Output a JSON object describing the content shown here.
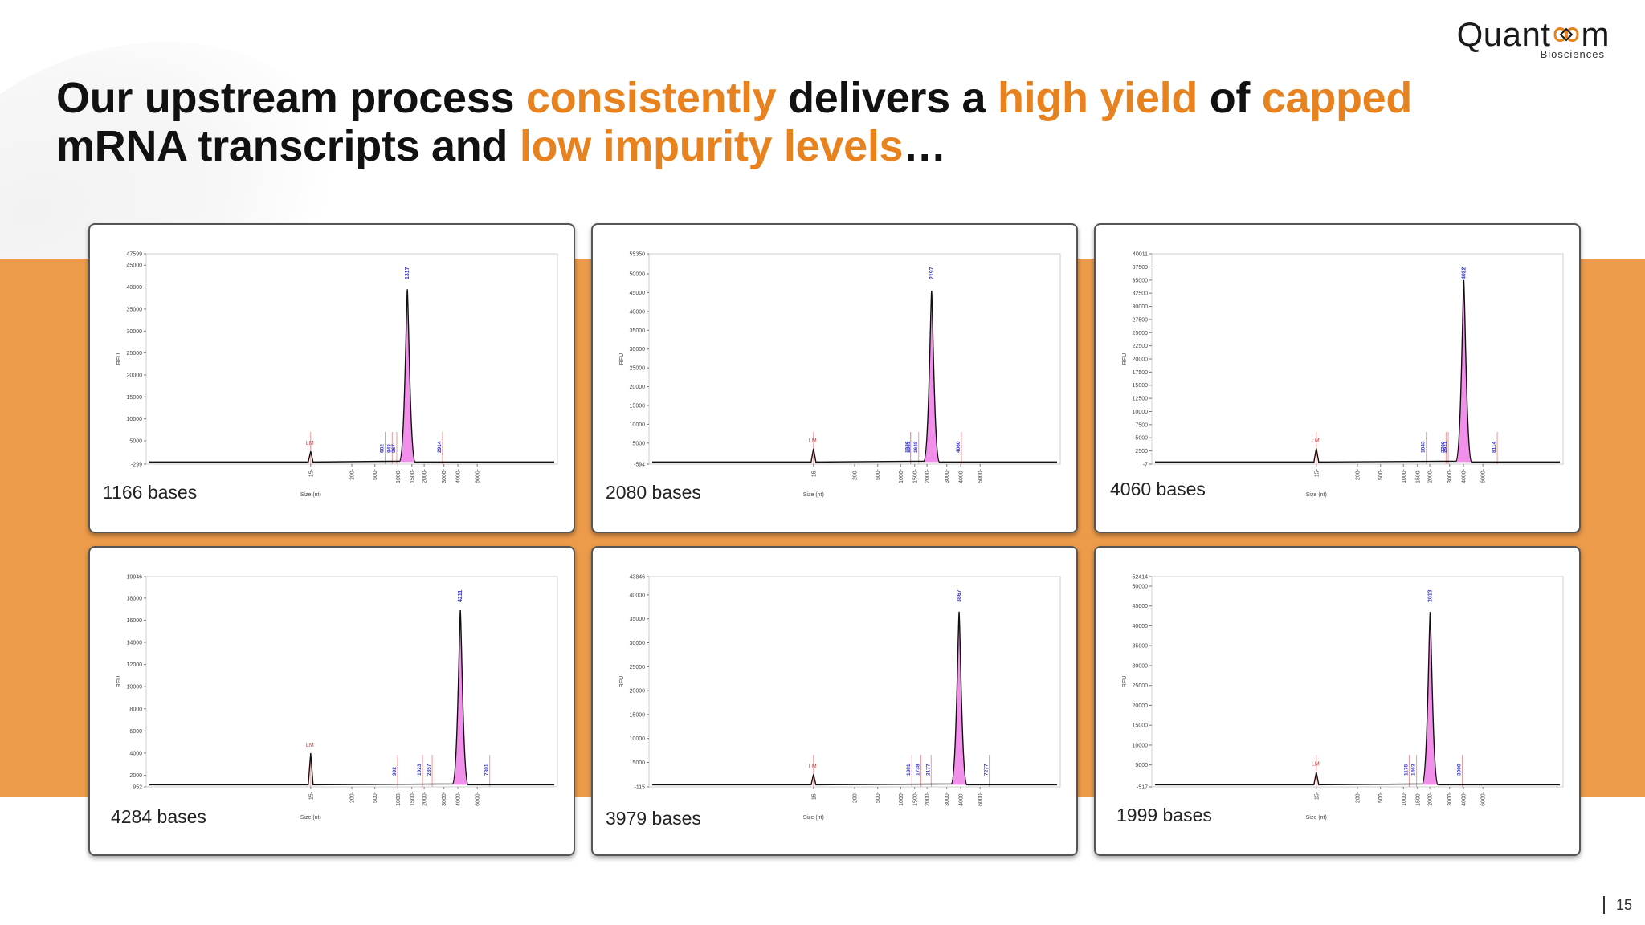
{
  "slide": {
    "title_parts": [
      {
        "text": "Our upstream process ",
        "hl": false
      },
      {
        "text": "consistently",
        "hl": true
      },
      {
        "text": " delivers a ",
        "hl": false
      },
      {
        "text": "high yield",
        "hl": true
      },
      {
        "text": " of ",
        "hl": false
      },
      {
        "text": "capped",
        "hl": true
      },
      {
        "text": "\n",
        "hl": false
      },
      {
        "text": "mRNA transcripts and ",
        "hl": false
      },
      {
        "text": "low impurity levels",
        "hl": true
      },
      {
        "text": "…",
        "hl": false
      }
    ],
    "page_number": "15",
    "colors": {
      "accent": "#E8821F",
      "band": "#EC9B4A",
      "fill": "#F07BE8",
      "marker_line": "#F08A8A",
      "peak_label": "#3A3AD0",
      "lm_label": "#D83030"
    }
  },
  "logo": {
    "name_pre": "Quant",
    "name_post": "m",
    "subtitle": "Biosciences"
  },
  "chart_data": [
    {
      "type": "line",
      "label": "1166 bases",
      "ylabel": "RFU",
      "xlabel": "Size (nt)",
      "ylim": [
        -299,
        47599
      ],
      "yticks": [
        "-299",
        "5000",
        "10000",
        "15000",
        "20000",
        "25000",
        "30000",
        "35000",
        "40000",
        "45000",
        "47599"
      ],
      "xticks": [
        "15",
        "200",
        "500",
        "1000",
        "1500",
        "2000",
        "3000",
        "4000",
        "6000"
      ],
      "lm": {
        "x": 15,
        "y": 2600,
        "label": "LM"
      },
      "peak": {
        "x": 1317,
        "y": 39500,
        "label": "1317"
      },
      "markers": [
        {
          "x": 682,
          "label": "682"
        },
        {
          "x": 843,
          "label": "843"
        },
        {
          "x": 967,
          "label": "967"
        },
        {
          "x": 2914,
          "label": "2914"
        }
      ]
    },
    {
      "type": "line",
      "label": "2080 bases",
      "ylabel": "RFU",
      "xlabel": "Size (nt)",
      "ylim": [
        -594,
        55350
      ],
      "yticks": [
        "-594",
        "5000",
        "10000",
        "15000",
        "20000",
        "25000",
        "30000",
        "35000",
        "40000",
        "45000",
        "50000",
        "55350"
      ],
      "xticks": [
        "15",
        "200",
        "500",
        "1000",
        "1500",
        "2000",
        "3000",
        "4000",
        "6000"
      ],
      "lm": {
        "x": 15,
        "y": 3500,
        "label": "LM"
      },
      "peak": {
        "x": 2197,
        "y": 45500,
        "label": "2197"
      },
      "markers": [
        {
          "x": 1326,
          "label": "1326"
        },
        {
          "x": 1381,
          "label": "1381"
        },
        {
          "x": 1648,
          "label": "1648"
        },
        {
          "x": 4060,
          "label": "4060"
        }
      ]
    },
    {
      "type": "line",
      "label": "4060 bases",
      "ylabel": "RFU",
      "xlabel": "Size (nt)",
      "ylim": [
        -7,
        40011
      ],
      "yticks": [
        "-7",
        "2500",
        "5000",
        "7500",
        "10000",
        "12500",
        "15000",
        "17500",
        "20000",
        "22500",
        "25000",
        "27500",
        "30000",
        "32500",
        "35000",
        "37500",
        "40011"
      ],
      "xticks": [
        "15",
        "200",
        "500",
        "1000",
        "1500",
        "2000",
        "3000",
        "4000",
        "6000"
      ],
      "lm": {
        "x": 15,
        "y": 3000,
        "label": "LM"
      },
      "peak": {
        "x": 4022,
        "y": 35000,
        "label": "4022"
      },
      "markers": [
        {
          "x": 1843,
          "label": "1843"
        },
        {
          "x": 2790,
          "label": "2790"
        },
        {
          "x": 2921,
          "label": "2921"
        },
        {
          "x": 8114,
          "label": "8114"
        }
      ]
    },
    {
      "type": "line",
      "label": "4284 bases",
      "ylabel": "RFU",
      "xlabel": "Size (nt)",
      "ylim": [
        952,
        19946
      ],
      "yticks": [
        "952",
        "2000",
        "4000",
        "6000",
        "8000",
        "10000",
        "12000",
        "14000",
        "16000",
        "18000",
        "19946"
      ],
      "xticks": [
        "15",
        "200",
        "500",
        "1000",
        "1500",
        "2000",
        "3000",
        "4000",
        "6000"
      ],
      "lm": {
        "x": 15,
        "y": 4000,
        "label": "LM"
      },
      "peak": {
        "x": 4211,
        "y": 16900,
        "label": "4211"
      },
      "markers": [
        {
          "x": 992,
          "label": "992"
        },
        {
          "x": 1923,
          "label": "1923"
        },
        {
          "x": 2357,
          "label": "2357"
        },
        {
          "x": 7801,
          "label": "7801"
        }
      ]
    },
    {
      "type": "line",
      "label": "3979 bases",
      "ylabel": "RFU",
      "xlabel": "Size (nt)",
      "ylim": [
        -115,
        43846
      ],
      "yticks": [
        "-115",
        "5000",
        "10000",
        "15000",
        "20000",
        "25000",
        "30000",
        "35000",
        "40000",
        "43846"
      ],
      "xticks": [
        "15",
        "200",
        "500",
        "1000",
        "1500",
        "2000",
        "3000",
        "4000",
        "6000"
      ],
      "lm": {
        "x": 15,
        "y": 2500,
        "label": "LM"
      },
      "peak": {
        "x": 3867,
        "y": 36500,
        "label": "3867"
      },
      "markers": [
        {
          "x": 1381,
          "label": "1381"
        },
        {
          "x": 1738,
          "label": "1738"
        },
        {
          "x": 2177,
          "label": "2177"
        },
        {
          "x": 7277,
          "label": "7277"
        }
      ]
    },
    {
      "type": "line",
      "label": "1999 bases",
      "ylabel": "RFU",
      "xlabel": "Size (nt)",
      "ylim": [
        -517,
        52414
      ],
      "yticks": [
        "-517",
        "5000",
        "10000",
        "15000",
        "20000",
        "25000",
        "30000",
        "35000",
        "40000",
        "45000",
        "50000",
        "52414"
      ],
      "xticks": [
        "15",
        "200",
        "500",
        "1000",
        "1500",
        "2000",
        "3000",
        "4000",
        "6000"
      ],
      "lm": {
        "x": 15,
        "y": 3200,
        "label": "LM"
      },
      "peak": {
        "x": 2013,
        "y": 43500,
        "label": "2013"
      },
      "markers": [
        {
          "x": 1178,
          "label": "1178"
        },
        {
          "x": 1463,
          "label": "1463"
        },
        {
          "x": 3900,
          "label": "3900"
        }
      ]
    }
  ]
}
